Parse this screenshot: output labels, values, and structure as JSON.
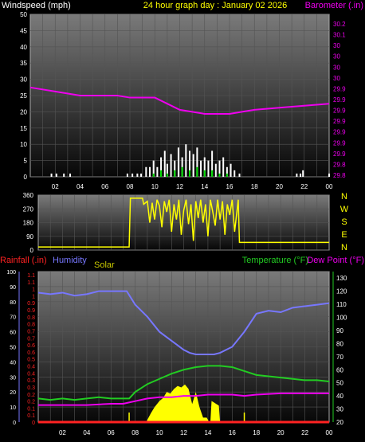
{
  "chart_data": [
    {
      "type": "line",
      "title": "24 hour graph day : January 02 2026",
      "left_axis_label": "Windspeed (mph)",
      "right_axis_label": "Barometer (.in)",
      "x_ticks": [
        "02",
        "04",
        "06",
        "08",
        "10",
        "12",
        "14",
        "16",
        "18",
        "20",
        "22",
        "00"
      ],
      "left_ticks": [
        0,
        5,
        10,
        15,
        20,
        25,
        30,
        35,
        40,
        45,
        50
      ],
      "right_ticks": [
        "29.8",
        "29.8",
        "29.9",
        "29.9",
        "29.9",
        "29.9",
        "29.9",
        "29.9",
        "29.9",
        "30",
        "30",
        "30",
        "30",
        "30.1",
        "30.2"
      ],
      "left_range": [
        0,
        50
      ],
      "right_range": [
        29.8,
        30.2
      ],
      "grid": true,
      "colors": {
        "wind": "#ffffff",
        "gust": "#00dd00",
        "barometer": "#ee00ee",
        "left_axis": "#ffffff",
        "right_axis": "#ee00ee",
        "title": "#ffff00"
      },
      "series": [
        {
          "name": "Barometer (.in)",
          "axis": "right",
          "x": [
            0,
            2,
            4,
            6,
            7,
            8,
            10,
            11,
            12,
            13,
            14,
            15,
            16,
            17,
            18,
            20,
            22,
            24
          ],
          "y": [
            30.02,
            30.01,
            30.0,
            30.0,
            30.0,
            29.995,
            29.995,
            29.98,
            29.965,
            29.96,
            29.955,
            29.955,
            29.955,
            29.96,
            29.965,
            29.97,
            29.975,
            29.98
          ]
        },
        {
          "name": "Windspeed (mph)",
          "axis": "left",
          "bars": true,
          "x": [
            1.7,
            2.1,
            2.7,
            3.2,
            7.8,
            8.2,
            8.6,
            8.9,
            9.3,
            9.6,
            9.9,
            10.2,
            10.5,
            10.8,
            11.0,
            11.3,
            11.6,
            11.9,
            12.2,
            12.5,
            12.8,
            13.1,
            13.4,
            13.7,
            14.0,
            14.3,
            14.6,
            14.9,
            15.2,
            15.5,
            15.8,
            16.1,
            16.4,
            16.8,
            21.4,
            21.7,
            21.9,
            24.0
          ],
          "y": [
            1,
            1,
            1,
            1,
            1,
            1,
            1,
            1,
            3,
            3,
            5,
            3,
            6,
            8,
            4,
            7,
            5,
            9,
            6,
            10,
            8,
            7,
            9,
            5,
            6,
            5,
            8,
            4,
            5,
            6,
            3,
            4,
            2,
            1,
            1,
            1,
            2,
            1
          ]
        },
        {
          "name": "Gust",
          "axis": "left",
          "bars": true,
          "x": [
            9.9,
            10.5,
            11.0,
            11.6,
            12.2,
            12.8,
            13.4,
            14.0,
            14.6,
            15.2,
            15.8
          ],
          "y": [
            1,
            2,
            1,
            2,
            3,
            2,
            3,
            2,
            2,
            1,
            1
          ]
        }
      ]
    },
    {
      "type": "line",
      "x_ticks": [],
      "left_ticks": [
        0,
        90,
        180,
        270,
        360
      ],
      "right_labels": [
        "N",
        "W",
        "S",
        "E",
        "N"
      ],
      "left_range": [
        0,
        360
      ],
      "colors": {
        "direction": "#ffff00",
        "left_axis": "#ffffff",
        "right_axis": "#ffff00"
      },
      "series": [
        {
          "name": "Wind Direction",
          "axis": "left",
          "x": [
            0,
            7.5,
            7.6,
            8.6,
            8.7,
            9.0,
            9.2,
            9.4,
            9.6,
            9.8,
            10.0,
            10.2,
            10.4,
            10.6,
            10.8,
            11.0,
            11.2,
            11.4,
            11.6,
            11.8,
            12.0,
            12.2,
            12.4,
            12.6,
            12.8,
            13.0,
            13.2,
            13.4,
            13.6,
            13.8,
            14.0,
            14.2,
            14.4,
            14.6,
            14.8,
            15.0,
            15.2,
            15.4,
            15.6,
            15.8,
            16.0,
            16.2,
            16.5,
            16.6,
            24
          ],
          "y": [
            20,
            20,
            340,
            340,
            300,
            320,
            180,
            310,
            200,
            330,
            290,
            150,
            320,
            250,
            330,
            120,
            300,
            200,
            330,
            100,
            260,
            330,
            170,
            300,
            60,
            320,
            210,
            330,
            180,
            300,
            90,
            330,
            250,
            160,
            330,
            200,
            320,
            100,
            300,
            230,
            330,
            120,
            330,
            50,
            50
          ]
        }
      ]
    },
    {
      "type": "line",
      "left_label_1": "Rainfall (.in)",
      "left_label_2": "Humidity",
      "left_label_3": "Solar",
      "right_label_1": "Temperature (°F)",
      "right_label_2": "Dew Point (°F)",
      "x_ticks": [
        "02",
        "04",
        "06",
        "08",
        "10",
        "12",
        "14",
        "16",
        "18",
        "20",
        "22",
        "00"
      ],
      "humidity_ticks": [
        0,
        10,
        20,
        30,
        40,
        50,
        60,
        70,
        80,
        90,
        100
      ],
      "rain_ticks": [
        "0",
        "0.1",
        "0.1",
        "0.2",
        "0.2",
        "0.3",
        "0.3",
        "0.4",
        "0.4",
        "0.5",
        "0.6",
        "0.6",
        "0.7",
        "0.7",
        "0.8",
        "0.8",
        "0.9",
        "0.9",
        "1",
        "1",
        "1.1",
        "1.1"
      ],
      "temp_ticks": [
        20,
        30,
        40,
        50,
        60,
        70,
        80,
        90,
        100,
        110,
        120,
        130
      ],
      "humidity_range": [
        0,
        100
      ],
      "temp_range": [
        20,
        135
      ],
      "grid": true,
      "colors": {
        "humidity": "#7777ff",
        "temperature": "#22cc22",
        "dewpoint": "#ee00ee",
        "rain": "#ff2222",
        "solar": "#ffff00",
        "temp_axis": "#22cc22",
        "rain_axis": "#ff2222"
      },
      "series": [
        {
          "name": "Humidity",
          "axis": "humidity",
          "x": [
            0,
            1,
            2,
            3,
            4,
            5,
            6,
            7,
            7.3,
            8,
            9,
            10,
            11,
            11.5,
            12,
            12.5,
            13,
            13.5,
            14,
            14.5,
            15,
            15.5,
            16,
            17,
            18,
            19,
            20,
            21,
            22,
            23,
            24
          ],
          "y": [
            86,
            85,
            86,
            84,
            85,
            87,
            87,
            87,
            87,
            78,
            70,
            60,
            54,
            51,
            48,
            46,
            45,
            45,
            45,
            45,
            46,
            48,
            50,
            60,
            72,
            74,
            73,
            76,
            77,
            78,
            79
          ]
        },
        {
          "name": "Temperature (°F)",
          "axis": "temp",
          "x": [
            0,
            1,
            2,
            3,
            4,
            5,
            6,
            7,
            7.5,
            8,
            9,
            10,
            11,
            12,
            13,
            14,
            15,
            16,
            17,
            18,
            19,
            20,
            21,
            22,
            23,
            24
          ],
          "y": [
            38,
            37,
            38,
            37,
            38,
            39,
            38,
            38,
            38,
            43,
            49,
            53,
            57,
            60,
            62,
            63,
            63,
            62,
            59,
            56,
            55,
            54,
            53,
            52,
            52,
            51
          ]
        },
        {
          "name": "Dew Point (°F)",
          "axis": "temp",
          "x": [
            0,
            2,
            4,
            6,
            7,
            8,
            9,
            10,
            11,
            12,
            13,
            14,
            15,
            16,
            17,
            18,
            20,
            22,
            24
          ],
          "y": [
            33,
            33,
            33,
            34,
            34,
            36,
            38,
            39,
            39,
            40,
            40,
            41,
            41,
            41,
            40,
            41,
            42,
            42,
            42
          ]
        },
        {
          "name": "Solar",
          "axis": "humidity",
          "area": true,
          "x": [
            8.9,
            9.3,
            9.6,
            10.0,
            10.3,
            10.6,
            10.9,
            11.2,
            11.5,
            11.8,
            12.1,
            12.4,
            12.7,
            13.0,
            13.3,
            13.6,
            13.9,
            14.1,
            14.2,
            14.3,
            14.5,
            14.7,
            14.9,
            15.0
          ],
          "y": [
            0,
            6,
            10,
            14,
            16,
            20,
            19,
            22,
            24,
            23,
            25,
            22,
            12,
            20,
            10,
            3,
            3,
            0,
            0,
            14,
            13,
            12,
            11,
            0
          ]
        },
        {
          "name": "Rainfall (.in)",
          "axis": "humidity",
          "x": [
            0,
            24
          ],
          "y": [
            0,
            0
          ]
        }
      ]
    }
  ]
}
